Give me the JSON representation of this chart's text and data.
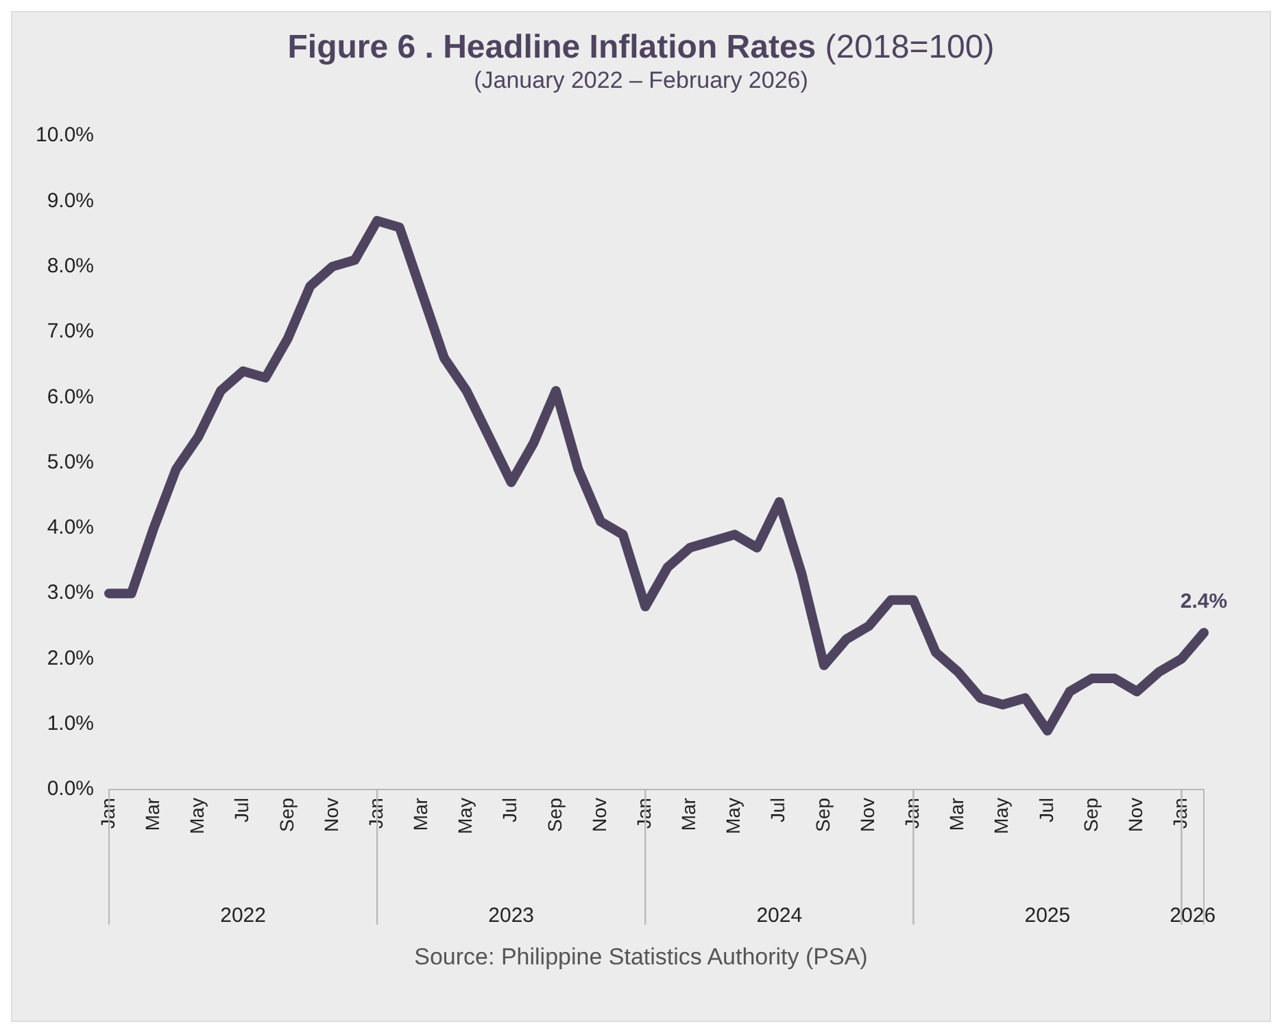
{
  "chart_data": {
    "type": "line",
    "title": "Figure 6 . Headline Inflation Rates (2018=100)",
    "subtitle": "(January 2022 – February 2026)",
    "categories": [
      "Jan",
      null,
      "Mar",
      null,
      "May",
      null,
      "Jul",
      null,
      "Sep",
      null,
      "Nov",
      null,
      "Jan",
      null,
      "Mar",
      null,
      "May",
      null,
      "Jul",
      null,
      "Sep",
      null,
      "Nov",
      null,
      "Jan",
      null,
      "Mar",
      null,
      "May",
      null,
      "Jul",
      null,
      "Sep",
      null,
      "Nov",
      null,
      "Jan",
      null,
      "Mar",
      null,
      "May",
      null,
      "Jul",
      null,
      "Sep",
      null,
      "Nov",
      null,
      "Jan",
      null
    ],
    "series": [
      {
        "color": "#4f4460",
        "values": [
          3.0,
          3.0,
          4.0,
          4.9,
          5.4,
          6.1,
          6.4,
          6.3,
          6.9,
          7.7,
          8.0,
          8.1,
          8.7,
          8.6,
          7.6,
          6.6,
          6.1,
          5.4,
          4.7,
          5.3,
          6.1,
          4.9,
          4.1,
          3.9,
          2.8,
          3.4,
          3.7,
          3.8,
          3.9,
          3.7,
          4.4,
          3.3,
          1.9,
          2.3,
          2.5,
          2.9,
          2.9,
          2.1,
          1.8,
          1.4,
          1.3,
          1.4,
          0.9,
          1.5,
          1.7,
          1.7,
          1.5,
          1.8,
          2.0,
          2.4
        ]
      }
    ],
    "ylim": [
      0,
      10
    ],
    "yticks": [
      {
        "value": 0,
        "label": "0.0%"
      },
      {
        "value": 1,
        "label": "1.0%"
      },
      {
        "value": 2,
        "label": "2.0%"
      },
      {
        "value": 3,
        "label": "3.0%"
      },
      {
        "value": 4,
        "label": "4.0%"
      },
      {
        "value": 5,
        "label": "5.0%"
      },
      {
        "value": 6,
        "label": "6.0%"
      },
      {
        "value": 7,
        "label": "7.0%"
      },
      {
        "value": 8,
        "label": "8.0%"
      },
      {
        "value": 9,
        "label": "9.0%"
      },
      {
        "value": 10,
        "label": "10.0%"
      }
    ],
    "annotations": [
      {
        "text": "2.4%",
        "y": 2.4
      },
      "2022",
      "2023",
      "2024",
      "2025",
      "2026",
      "Source: Philippine Statistics Authority (PSA)"
    ],
    "grid": false,
    "legend": false,
    "marker": "none",
    "line_style": "solid"
  }
}
